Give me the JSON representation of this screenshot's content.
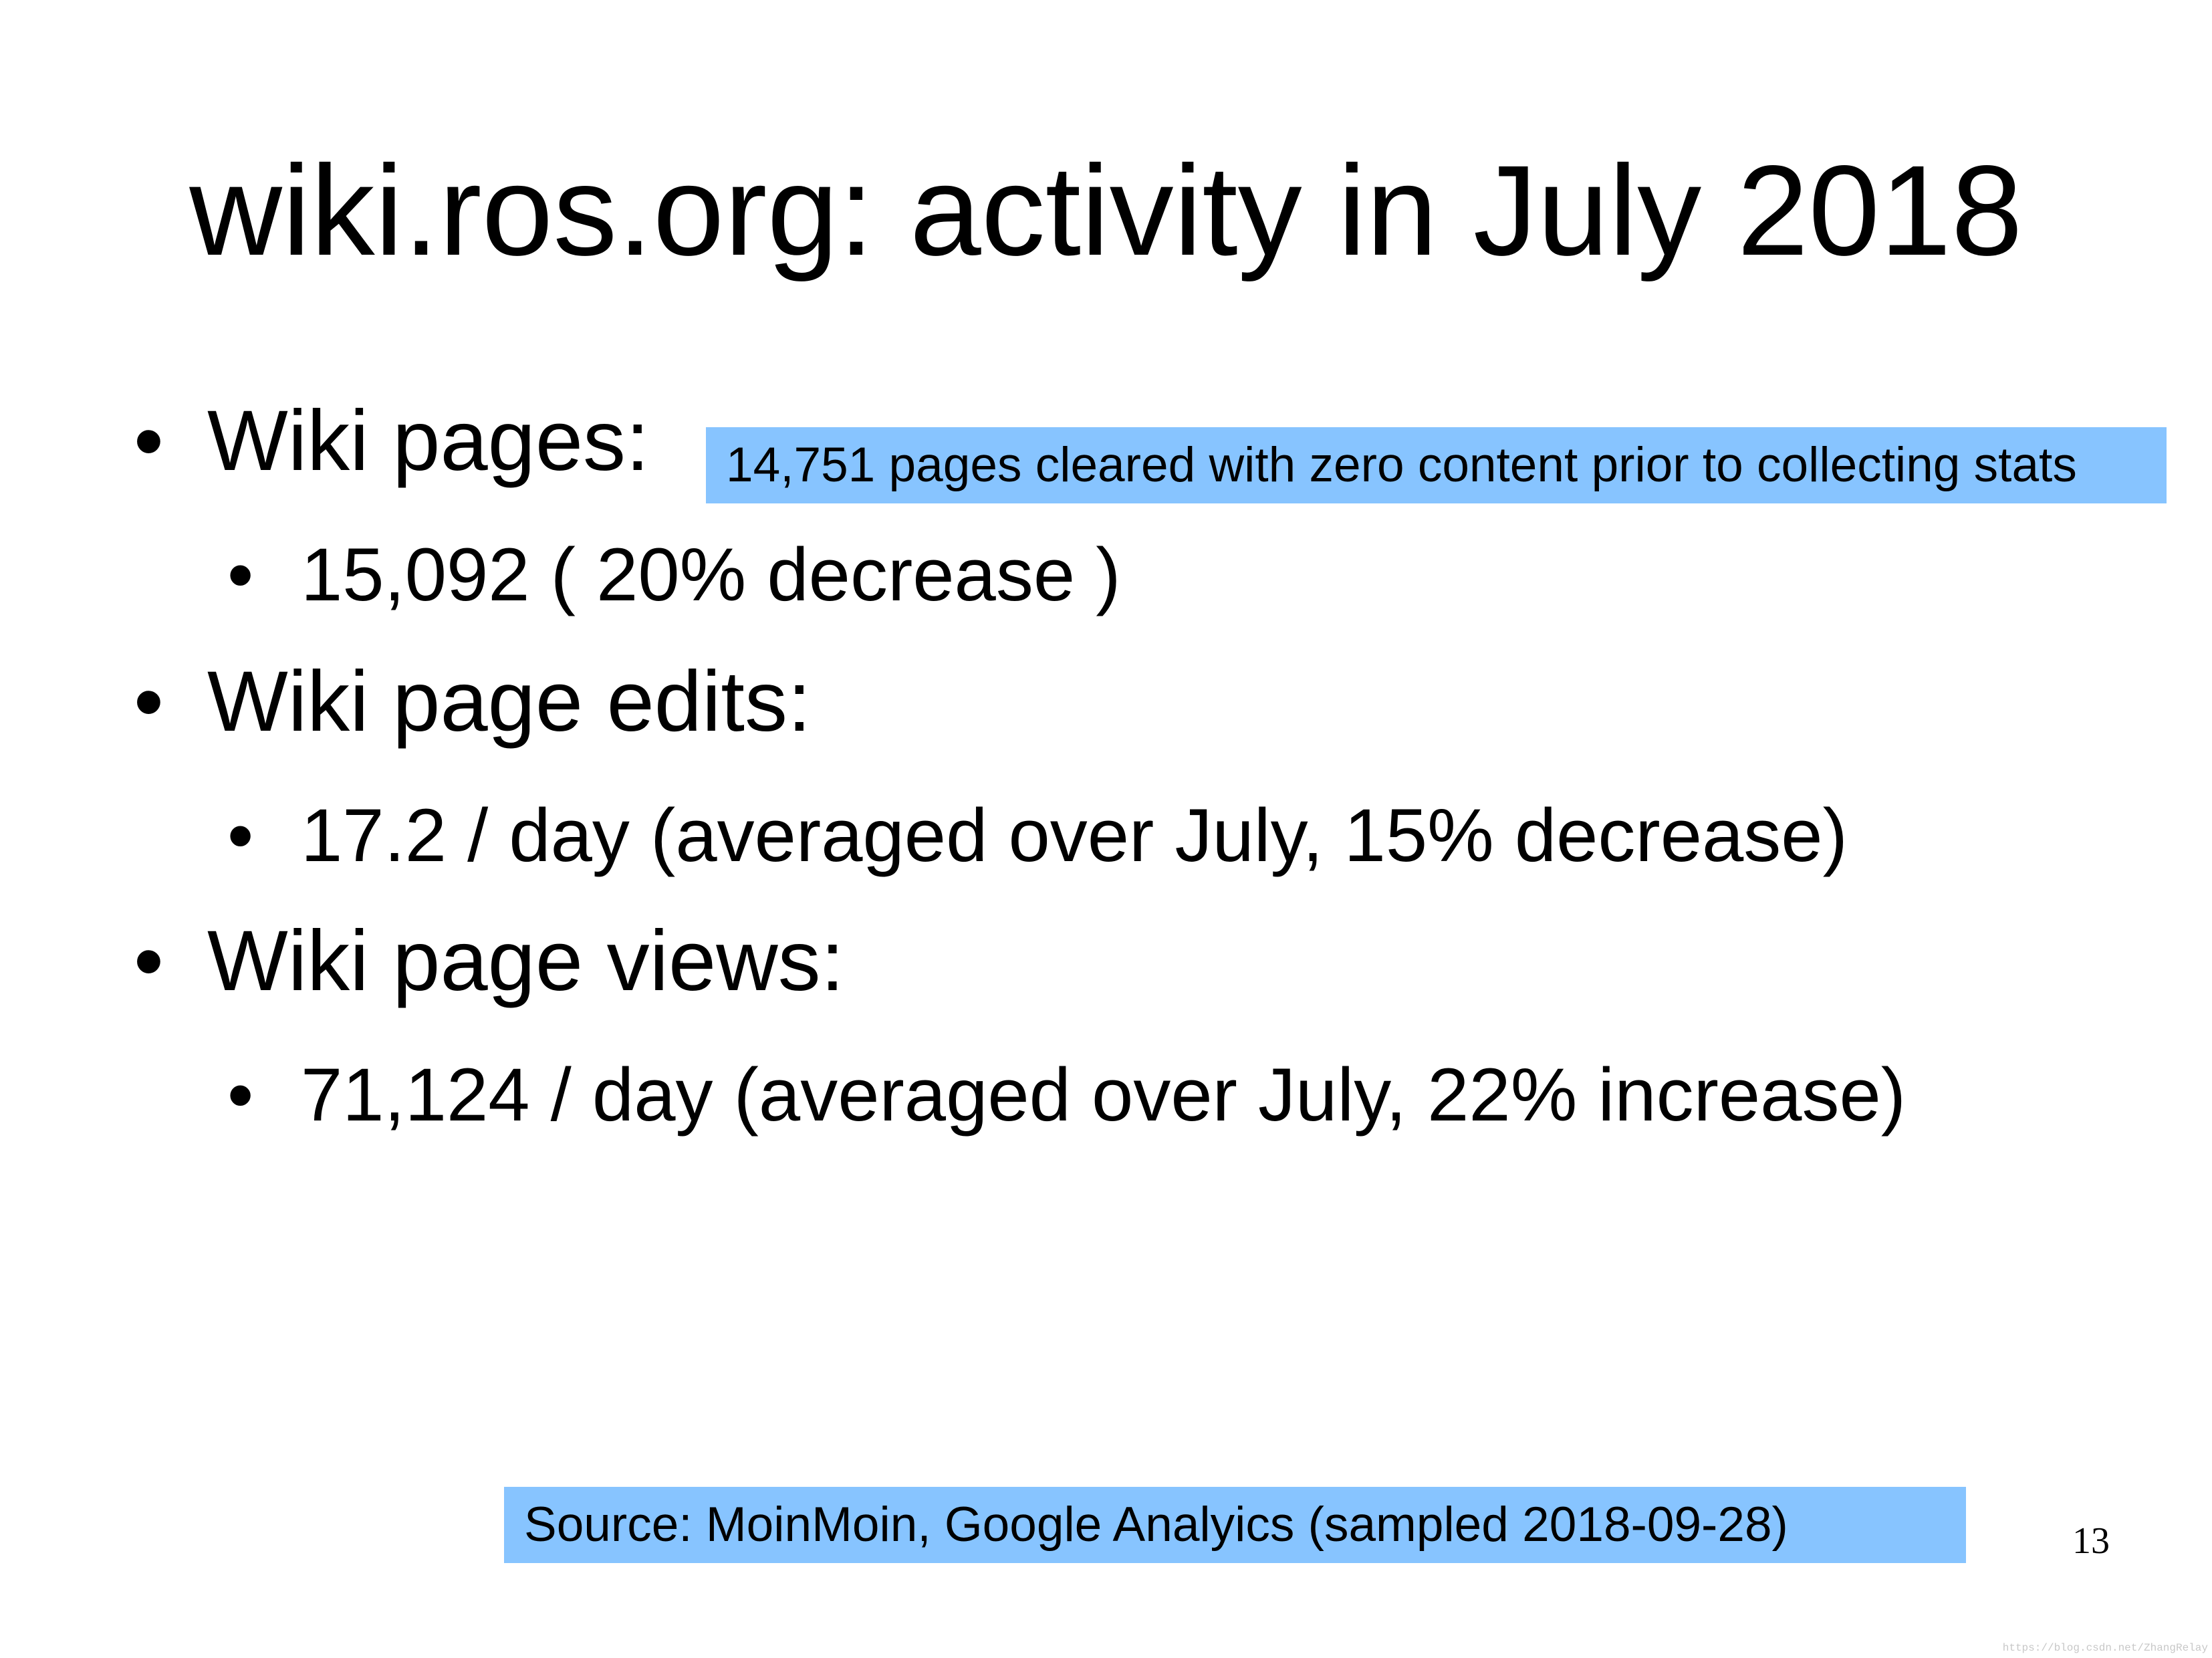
{
  "slide": {
    "title": "wiki.ros.org: activity in July 2018",
    "page_number": "13"
  },
  "bullets": {
    "symbol": "•",
    "pages_label": "Wiki pages:",
    "pages_value": "15,092 ( 20% decrease )",
    "edits_label": "Wiki page edits:",
    "edits_value": "17.2 / day (averaged over July, 15% decrease)",
    "views_label": "Wiki page views:",
    "views_value": "71,124 / day (averaged over July, 22% increase)"
  },
  "callouts": {
    "pages_note": "14,751 pages cleared with zero content prior to collecting stats",
    "source": "Source: MoinMoin, Google Analyics (sampled 2018-09-28)",
    "color": "#87c4ff"
  },
  "watermark": "https://blog.csdn.net/ZhangRelay"
}
